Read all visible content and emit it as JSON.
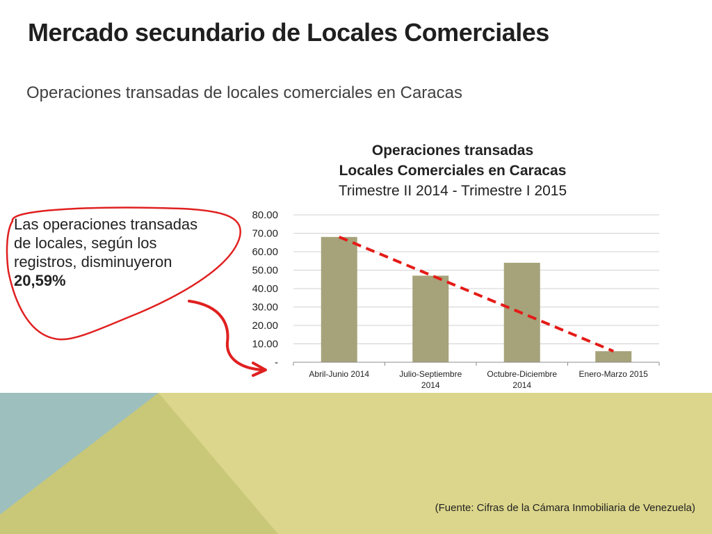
{
  "title": "Mercado secundario de Locales Comerciales",
  "subtitle": "Operaciones transadas de locales comerciales en Caracas",
  "callout": {
    "text": "Las operaciones transadas de locales, según los registros, disminuyeron ",
    "highlight": "20,59%"
  },
  "source": "(Fuente: Cifras de la Cámara Inmobiliaria de Venezuela)",
  "colors": {
    "bar": "#a6a27a",
    "trend": "#e41b17",
    "annotation": "#e02020",
    "bg_teal": "#9dbfbe",
    "bg_olive": "#c9c878",
    "bg_yellow": "#dcd68c"
  },
  "chart_data": {
    "type": "bar",
    "title_line1": "Operaciones transadas",
    "title_line2": "Locales Comerciales en Caracas",
    "title_line3": "Trimestre II 2014 - Trimestre I 2015",
    "categories": [
      [
        "Abril-Junio 2014"
      ],
      [
        "Julio-Septiembre",
        "2014"
      ],
      [
        "Octubre-Diciembre",
        "2014"
      ],
      [
        "Enero-Marzo 2015"
      ]
    ],
    "values": [
      68,
      47,
      54,
      6
    ],
    "ylim": [
      0,
      80
    ],
    "yticks": [
      0,
      10,
      20,
      30,
      40,
      50,
      60,
      70,
      80
    ],
    "ytick_labels": [
      "-",
      "10.00",
      "20.00",
      "30.00",
      "40.00",
      "50.00",
      "60.00",
      "70.00",
      "80.00"
    ],
    "trendline": {
      "from": 68,
      "to": 6,
      "style": "dashed"
    },
    "grid": true,
    "xlabel": "",
    "ylabel": ""
  }
}
